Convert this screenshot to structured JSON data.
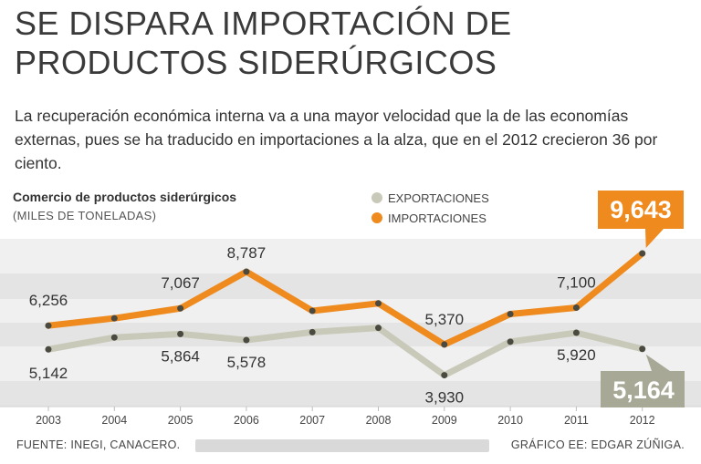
{
  "headline": {
    "line1": "SE DISPARA IMPORTACIÓN DE",
    "line2": "PRODUCTOS SIDERÚRGICOS"
  },
  "deck": "La recuperación económica interna va a una mayor velocidad que la de las economías externas, pues se ha traducido en importaciones a la alza, que en el 2012 crecieron 36 por ciento.",
  "footer": {
    "source": "FUENTE: INEGI, CANACERO.",
    "credit": "GRÁFICO EE: EDGAR ZÚÑIGA."
  },
  "colors": {
    "importaciones": "#ee8a1e",
    "exportaciones": "#c9c9b9",
    "importaciones_callout": "#ee8a1e",
    "exportaciones_callout": "#a7a896",
    "band_light": "#f0f0f0",
    "band_dark": "#e4e4e4"
  },
  "chart_data": {
    "type": "line",
    "title": "Comercio de productos siderúrgicos",
    "unit": "(MILES DE TONELADAS)",
    "categories": [
      "2003",
      "2004",
      "2005",
      "2006",
      "2007",
      "2008",
      "2009",
      "2010",
      "2011",
      "2012"
    ],
    "ylim": [
      2500,
      10500
    ],
    "series": [
      {
        "name": "EXPORTACIONES",
        "key": "exportaciones",
        "values": [
          5142,
          5700,
          5864,
          5578,
          5950,
          6150,
          3930,
          5500,
          5920,
          5164
        ],
        "labels": [
          "5,142",
          "",
          "5,864",
          "5,578",
          "",
          "",
          "3,930",
          "",
          "5,920",
          ""
        ],
        "label_side": [
          "below",
          "",
          "below",
          "below",
          "",
          "",
          "below",
          "",
          "below",
          ""
        ]
      },
      {
        "name": "IMPORTACIONES",
        "key": "importaciones",
        "values": [
          6256,
          6600,
          7067,
          8787,
          6950,
          7300,
          5370,
          6800,
          7100,
          9643
        ],
        "labels": [
          "6,256",
          "",
          "7,067",
          "8,787",
          "",
          "",
          "5,370",
          "",
          "7,100",
          ""
        ],
        "label_side": [
          "above",
          "",
          "above",
          "above",
          "",
          "",
          "above",
          "",
          "above",
          ""
        ]
      }
    ],
    "callouts": [
      {
        "series": "importaciones",
        "text": "9,643"
      },
      {
        "series": "exportaciones",
        "text": "5,164"
      }
    ],
    "legend": [
      "EXPORTACIONES",
      "IMPORTACIONES"
    ]
  }
}
